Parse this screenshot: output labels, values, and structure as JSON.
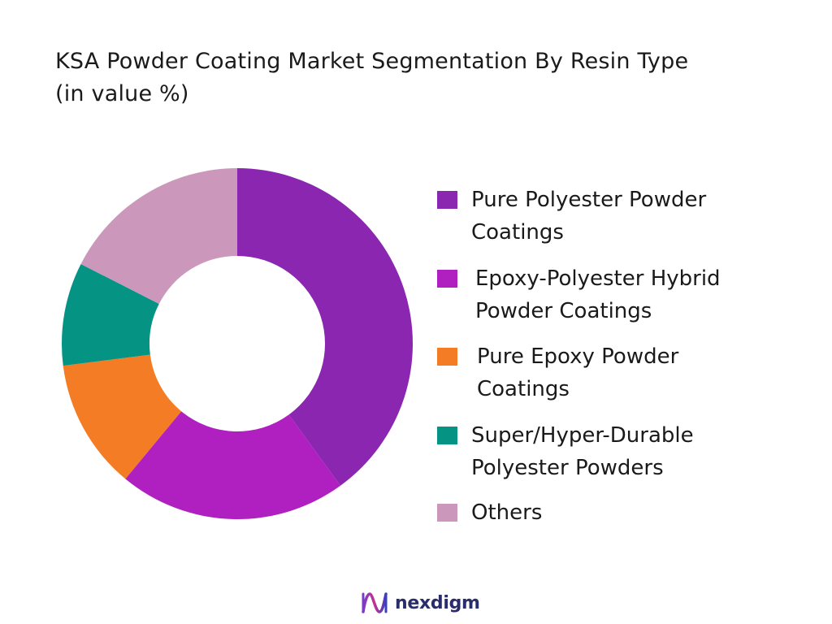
{
  "chart_data": {
    "type": "pie",
    "title": "KSA Powder Coating Market Segmentation By Resin Type\n(in value %)",
    "categories": [
      "Pure Polyester Powder Coatings",
      "Epoxy-Polyester Hybrid Powder Coatings",
      "Pure Epoxy Powder Coatings",
      "Super/Hyper-Durable Polyester Powders",
      "Others"
    ],
    "values": [
      40,
      21,
      12,
      9.5,
      17.5
    ],
    "colors": [
      "#8a26af",
      "#b020c1",
      "#f47c24",
      "#059484",
      "#cb98bc"
    ],
    "legend_position": "right",
    "donut": true
  },
  "legend": [
    {
      "label": "Pure Polyester Powder Coatings",
      "color": "#8a26af"
    },
    {
      "label": "Epoxy-Polyester Hybrid Powder Coatings",
      "color": "#b020c1"
    },
    {
      "label": "Pure Epoxy Powder Coatings",
      "color": "#f47c24"
    },
    {
      "label": "Super/Hyper-Durable Polyester Powders",
      "color": "#059484"
    },
    {
      "label": "Others",
      "color": "#cb98bc"
    }
  ],
  "brand": {
    "name": "nexdigm",
    "icon": "nexdigm-logo-icon"
  }
}
